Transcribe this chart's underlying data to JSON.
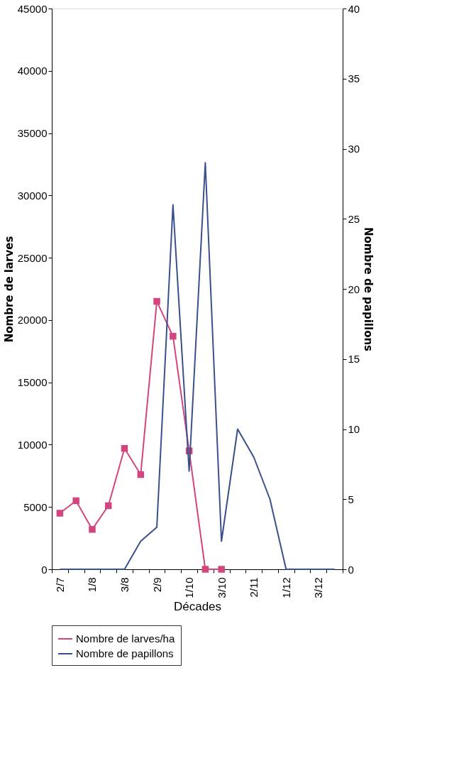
{
  "chart_data": {
    "type": "line",
    "xlabel": "Décades",
    "ylabel": "Nombre de larves",
    "y2label": "Nombre de papillons",
    "categories": [
      "2/7",
      null,
      "1/8",
      null,
      "3/8",
      null,
      "2/9",
      null,
      "1/10",
      null,
      "3/10",
      null,
      "2/11",
      null,
      "1/12",
      null,
      "3/12",
      null
    ],
    "series": [
      {
        "name": "Nombre de larves/ha",
        "color": "#d2457e",
        "marker": "square",
        "axis": "y",
        "values": [
          4500,
          5500,
          3200,
          5100,
          9700,
          7600,
          21500,
          18700,
          9500,
          0,
          0,
          null,
          null,
          null,
          null,
          null,
          null,
          null
        ]
      },
      {
        "name": "Nombre de papillons",
        "color": "#3b4f8c",
        "marker": "none",
        "axis": "y2",
        "values": [
          0,
          0,
          0,
          0,
          0,
          2,
          3,
          26,
          7,
          29,
          2,
          10,
          8,
          5,
          0,
          0,
          0,
          0
        ]
      }
    ],
    "ylim": [
      0,
      45000
    ],
    "yticks": [
      0,
      5000,
      10000,
      15000,
      20000,
      25000,
      30000,
      35000,
      40000,
      45000
    ],
    "y2lim": [
      0,
      40
    ],
    "y2ticks": [
      0,
      5,
      10,
      15,
      20,
      25,
      30,
      35,
      40
    ],
    "grid": false,
    "legend": "bottom"
  }
}
